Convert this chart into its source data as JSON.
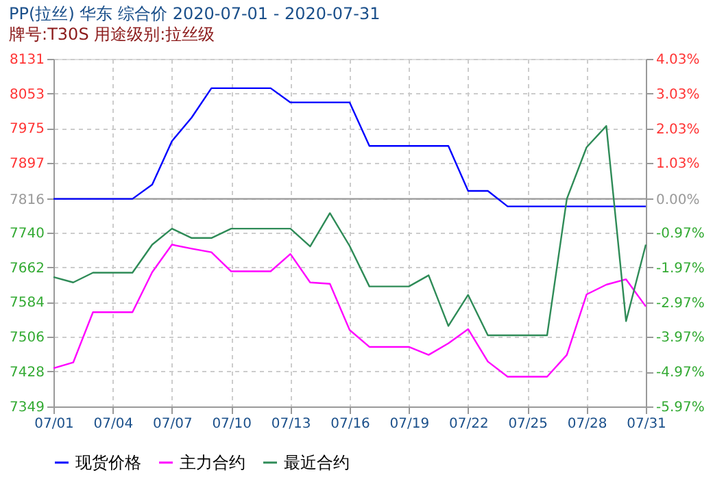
{
  "chart_data": {
    "type": "line",
    "title": "PP(拉丝) 华东 综合价 2020-07-01 - 2020-07-31",
    "subtitle": "牌号:T30S 用途级别:拉丝级",
    "x": [
      "2020-07-01",
      "2020-07-02",
      "2020-07-03",
      "2020-07-04",
      "2020-07-05",
      "2020-07-06",
      "2020-07-07",
      "2020-07-08",
      "2020-07-09",
      "2020-07-10",
      "2020-07-11",
      "2020-07-12",
      "2020-07-13",
      "2020-07-14",
      "2020-07-15",
      "2020-07-16",
      "2020-07-17",
      "2020-07-18",
      "2020-07-19",
      "2020-07-20",
      "2020-07-21",
      "2020-07-22",
      "2020-07-23",
      "2020-07-24",
      "2020-07-25",
      "2020-07-26",
      "2020-07-27",
      "2020-07-28",
      "2020-07-29",
      "2020-07-30",
      "2020-07-31"
    ],
    "series": [
      {
        "name": "现货价格",
        "color": "#0000ff",
        "values": [
          7816,
          7816,
          7816,
          7816,
          7816,
          7848,
          7946,
          7999,
          8065,
          8065,
          8065,
          8065,
          8033,
          8033,
          8033,
          8033,
          7935,
          7935,
          7935,
          7935,
          7935,
          7834,
          7834,
          7799,
          7799,
          7799,
          7799,
          7799,
          7799,
          7799,
          7799
        ]
      },
      {
        "name": "主力合约",
        "color": "#ff00ff",
        "values": [
          7435,
          7448,
          7561,
          7561,
          7561,
          7651,
          7713,
          7704,
          7696,
          7653,
          7653,
          7653,
          7692,
          7628,
          7625,
          7521,
          7483,
          7483,
          7483,
          7465,
          7491,
          7523,
          7450,
          7416,
          7416,
          7416,
          7465,
          7601,
          7623,
          7635,
          7574
        ]
      },
      {
        "name": "最近合约",
        "color": "#2e8b57",
        "values": [
          7640,
          7628,
          7650,
          7650,
          7650,
          7713,
          7749,
          7728,
          7728,
          7749,
          7749,
          7749,
          7749,
          7709,
          7784,
          7710,
          7619,
          7619,
          7619,
          7644,
          7530,
          7600,
          7509,
          7509,
          7509,
          7509,
          7816,
          7932,
          7980,
          7541,
          7713
        ]
      }
    ],
    "xlim": [
      "2020-07-01",
      "2020-07-31"
    ],
    "xticks": [
      {
        "value": "2020-07-01",
        "label": "07/01"
      },
      {
        "value": "2020-07-04",
        "label": "07/04"
      },
      {
        "value": "2020-07-07",
        "label": "07/07"
      },
      {
        "value": "2020-07-10",
        "label": "07/10"
      },
      {
        "value": "2020-07-13",
        "label": "07/13"
      },
      {
        "value": "2020-07-16",
        "label": "07/16"
      },
      {
        "value": "2020-07-19",
        "label": "07/19"
      },
      {
        "value": "2020-07-22",
        "label": "07/22"
      },
      {
        "value": "2020-07-25",
        "label": "07/25"
      },
      {
        "value": "2020-07-28",
        "label": "07/28"
      },
      {
        "value": "2020-07-31",
        "label": "07/31"
      }
    ],
    "ylim": [
      7349,
      8131
    ],
    "yticks": [
      7349,
      7428,
      7506,
      7584,
      7662,
      7740,
      7816,
      7897,
      7975,
      8053,
      8131
    ],
    "y2lim": [
      -5.97,
      4.03
    ],
    "y2ticks": [
      {
        "value": -5.97,
        "label": "-5.97%"
      },
      {
        "value": -4.97,
        "label": "-4.97%"
      },
      {
        "value": -3.97,
        "label": "-3.97%"
      },
      {
        "value": -2.97,
        "label": "-2.97%"
      },
      {
        "value": -1.97,
        "label": "-1.97%"
      },
      {
        "value": -0.97,
        "label": "-0.97%"
      },
      {
        "value": 0,
        "label": "0.00%"
      },
      {
        "value": 1.03,
        "label": "1.03%"
      },
      {
        "value": 2.03,
        "label": "2.03%"
      },
      {
        "value": 3.03,
        "label": "3.03%"
      },
      {
        "value": 4.03,
        "label": "4.03%"
      }
    ],
    "ref_lines": [
      {
        "axis": "y",
        "value": 7816,
        "color": "#999999"
      }
    ],
    "grid": true,
    "legend": "bottom",
    "marker": "none",
    "line_style": "solid"
  }
}
